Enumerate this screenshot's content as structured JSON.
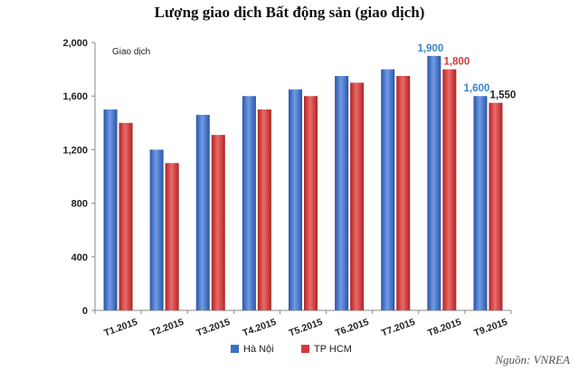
{
  "chart_data": {
    "type": "bar",
    "title": "Lượng giao dịch Bất động sản (giao dịch)",
    "ylabel": "Giao dịch",
    "xlabel": "",
    "ylim": [
      0,
      2000
    ],
    "yticks": [
      0,
      400,
      800,
      1200,
      1600,
      2000
    ],
    "ytick_labels": [
      "0",
      "400",
      "800",
      "1,200",
      "1,600",
      "2,000"
    ],
    "grid": false,
    "legend_position": "bottom",
    "categories": [
      "T1.2015",
      "T2.2015",
      "T3.2015",
      "T4.2015",
      "T5.2015",
      "T6.2015",
      "T7.2015",
      "T8.2015",
      "T9.2015"
    ],
    "series": [
      {
        "name": "Hà Nội",
        "color": "#3a6fc4",
        "values": [
          1500,
          1200,
          1460,
          1600,
          1650,
          1750,
          1800,
          1900,
          1600
        ]
      },
      {
        "name": "TP HCM",
        "color": "#d23b3b",
        "values": [
          1400,
          1100,
          1310,
          1500,
          1600,
          1700,
          1750,
          1800,
          1550
        ]
      }
    ],
    "annotations": [
      {
        "series": 0,
        "index": 7,
        "text": "1,900",
        "color": "#3a86c4"
      },
      {
        "series": 1,
        "index": 7,
        "text": "1,800",
        "color": "#d23b3b"
      },
      {
        "series": 0,
        "index": 8,
        "text": "1,600",
        "color": "#3a86c4"
      },
      {
        "series": 1,
        "index": 8,
        "text": "1,550",
        "color": "#222222"
      }
    ],
    "source": "Nguồn: VNREA"
  }
}
